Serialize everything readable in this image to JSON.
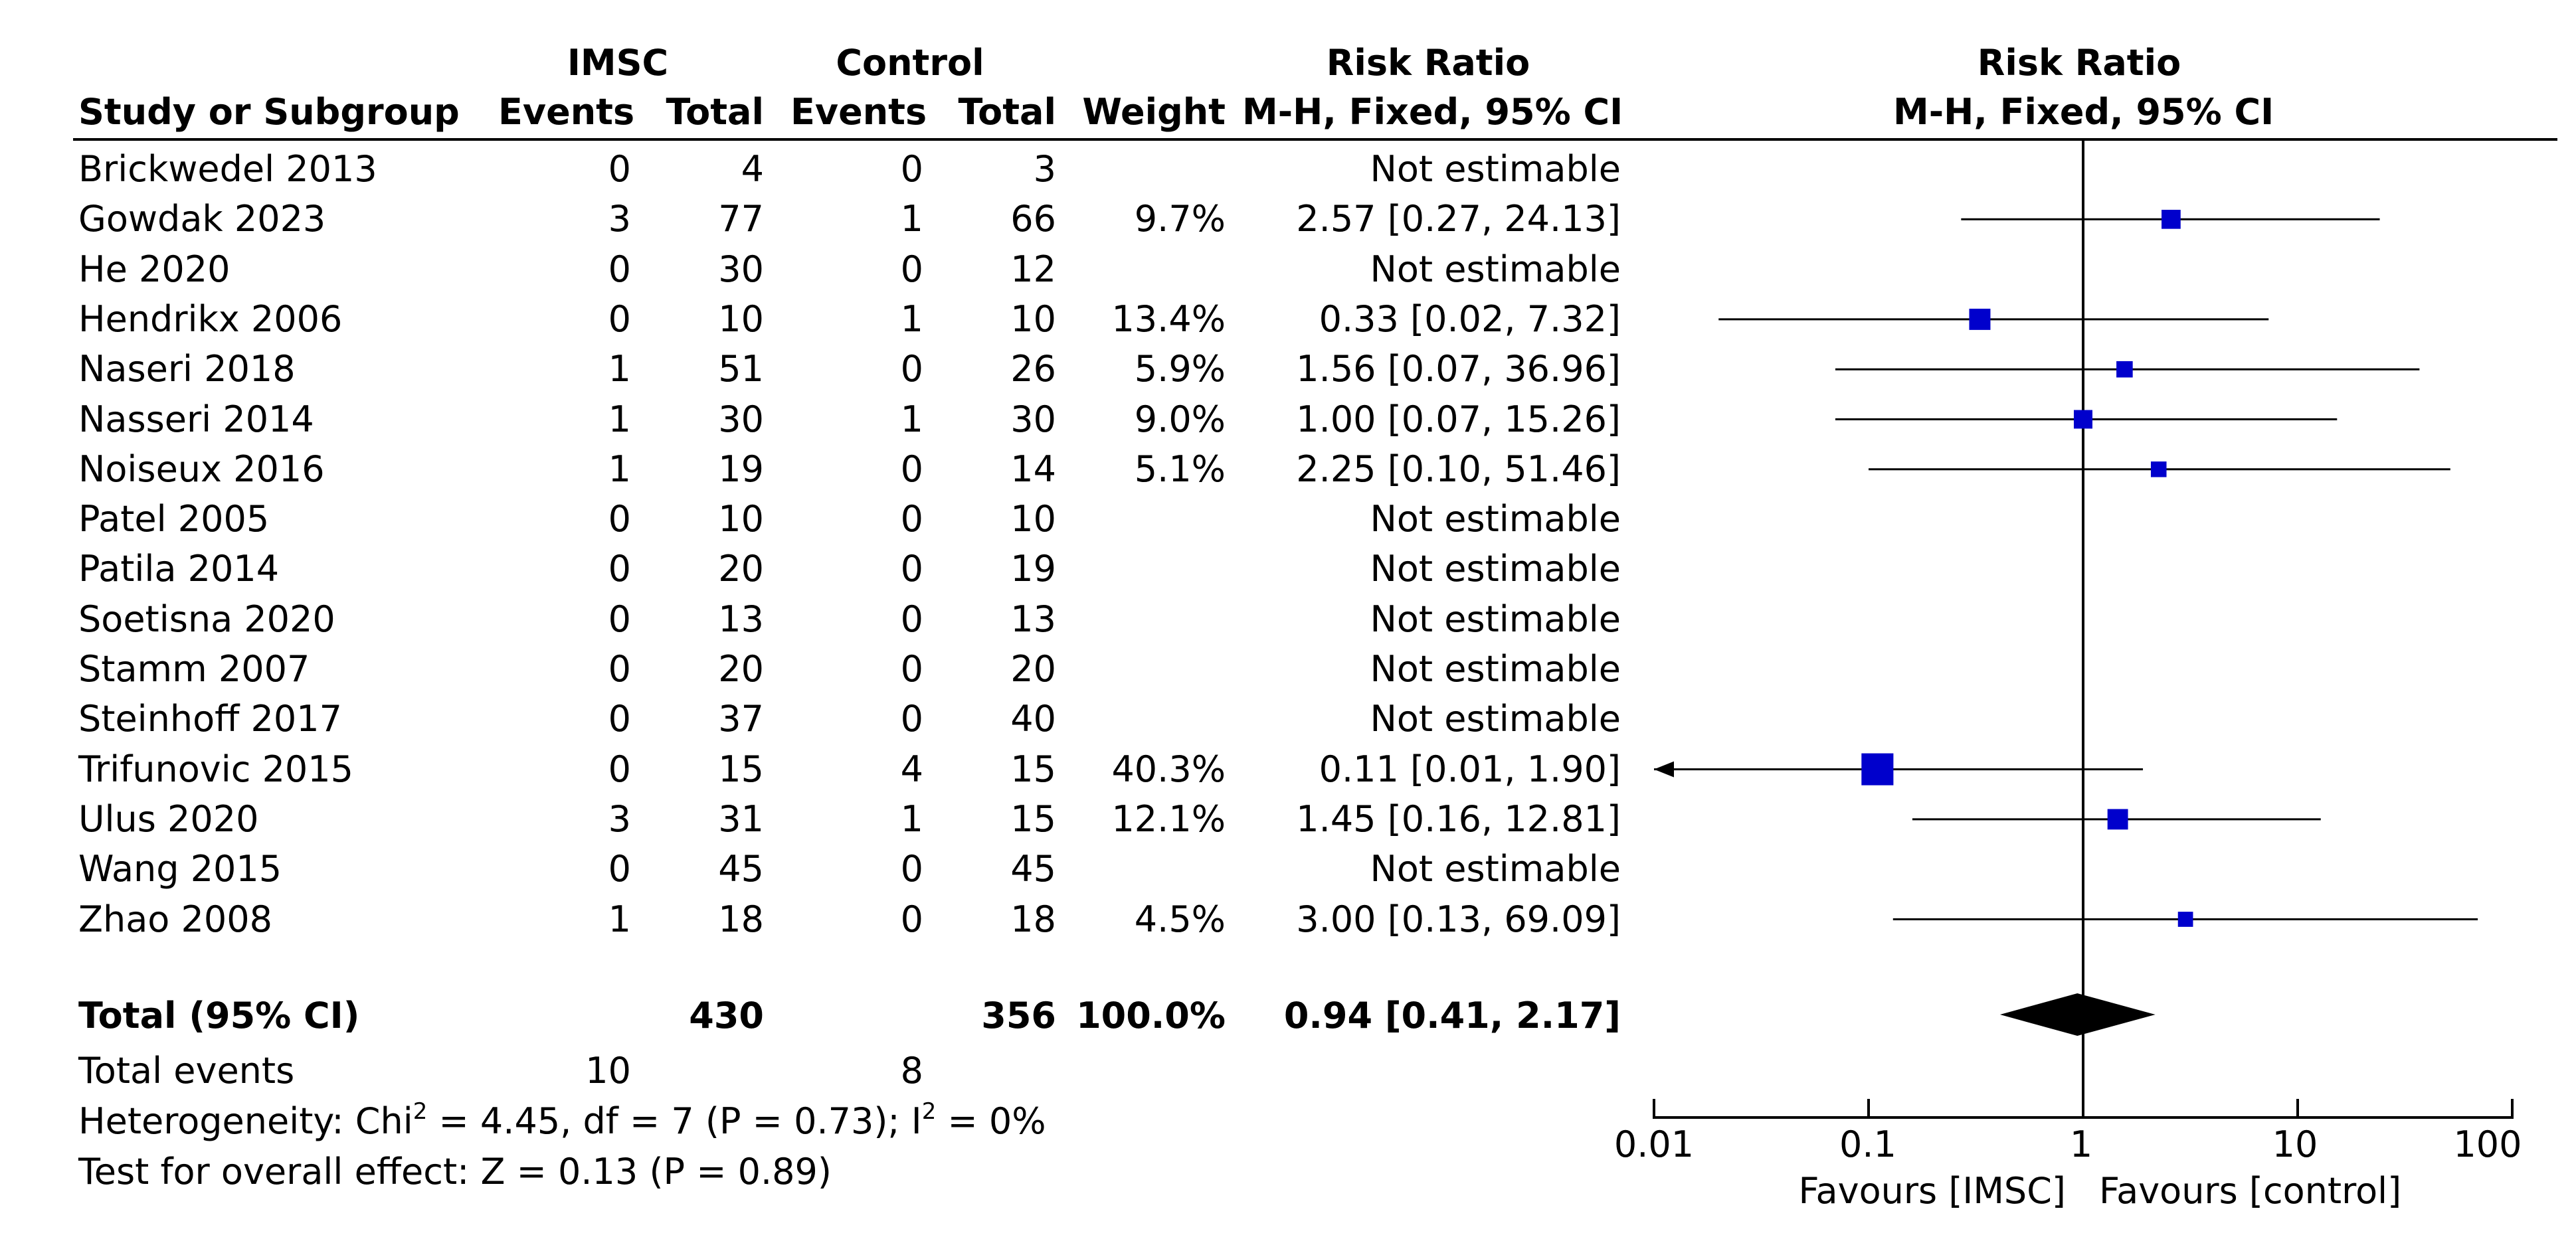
{
  "chart_data": {
    "type": "forest",
    "headers": {
      "group1": "IMSC",
      "group2": "Control",
      "study": "Study or Subgroup",
      "events": "Events",
      "total": "Total",
      "weight": "Weight",
      "rr_title": "Risk Ratio",
      "rr_method": "M-H, Fixed, 95% CI",
      "plot_title": "Risk Ratio",
      "plot_method": "M-H, Fixed, 95% CI"
    },
    "studies": [
      {
        "name": "Brickwedel 2013",
        "e1": "0",
        "n1": "4",
        "e2": "0",
        "n2": "3",
        "weight": "",
        "ci_text": "Not estimable",
        "rr": null,
        "lo": null,
        "hi": null,
        "w": 0
      },
      {
        "name": "Gowdak 2023",
        "e1": "3",
        "n1": "77",
        "e2": "1",
        "n2": "66",
        "weight": "9.7%",
        "ci_text": "2.57 [0.27, 24.13]",
        "rr": 2.57,
        "lo": 0.27,
        "hi": 24.13,
        "w": 9.7
      },
      {
        "name": "He 2020",
        "e1": "0",
        "n1": "30",
        "e2": "0",
        "n2": "12",
        "weight": "",
        "ci_text": "Not estimable",
        "rr": null,
        "lo": null,
        "hi": null,
        "w": 0
      },
      {
        "name": "Hendrikx 2006",
        "e1": "0",
        "n1": "10",
        "e2": "1",
        "n2": "10",
        "weight": "13.4%",
        "ci_text": "0.33 [0.02, 7.32]",
        "rr": 0.33,
        "lo": 0.02,
        "hi": 7.32,
        "w": 13.4
      },
      {
        "name": "Naseri 2018",
        "e1": "1",
        "n1": "51",
        "e2": "0",
        "n2": "26",
        "weight": "5.9%",
        "ci_text": "1.56 [0.07, 36.96]",
        "rr": 1.56,
        "lo": 0.07,
        "hi": 36.96,
        "w": 5.9
      },
      {
        "name": "Nasseri 2014",
        "e1": "1",
        "n1": "30",
        "e2": "1",
        "n2": "30",
        "weight": "9.0%",
        "ci_text": "1.00 [0.07, 15.26]",
        "rr": 1.0,
        "lo": 0.07,
        "hi": 15.26,
        "w": 9.0
      },
      {
        "name": "Noiseux 2016",
        "e1": "1",
        "n1": "19",
        "e2": "0",
        "n2": "14",
        "weight": "5.1%",
        "ci_text": "2.25 [0.10, 51.46]",
        "rr": 2.25,
        "lo": 0.1,
        "hi": 51.46,
        "w": 5.1
      },
      {
        "name": "Patel 2005",
        "e1": "0",
        "n1": "10",
        "e2": "0",
        "n2": "10",
        "weight": "",
        "ci_text": "Not estimable",
        "rr": null,
        "lo": null,
        "hi": null,
        "w": 0
      },
      {
        "name": "Patila 2014",
        "e1": "0",
        "n1": "20",
        "e2": "0",
        "n2": "19",
        "weight": "",
        "ci_text": "Not estimable",
        "rr": null,
        "lo": null,
        "hi": null,
        "w": 0
      },
      {
        "name": "Soetisna 2020",
        "e1": "0",
        "n1": "13",
        "e2": "0",
        "n2": "13",
        "weight": "",
        "ci_text": "Not estimable",
        "rr": null,
        "lo": null,
        "hi": null,
        "w": 0
      },
      {
        "name": "Stamm 2007",
        "e1": "0",
        "n1": "20",
        "e2": "0",
        "n2": "20",
        "weight": "",
        "ci_text": "Not estimable",
        "rr": null,
        "lo": null,
        "hi": null,
        "w": 0
      },
      {
        "name": "Steinhoff 2017",
        "e1": "0",
        "n1": "37",
        "e2": "0",
        "n2": "40",
        "weight": "",
        "ci_text": "Not estimable",
        "rr": null,
        "lo": null,
        "hi": null,
        "w": 0
      },
      {
        "name": "Trifunovic 2015",
        "e1": "0",
        "n1": "15",
        "e2": "4",
        "n2": "15",
        "weight": "40.3%",
        "ci_text": "0.11 [0.01, 1.90]",
        "rr": 0.11,
        "lo": 0.01,
        "hi": 1.9,
        "w": 40.3
      },
      {
        "name": "Ulus 2020",
        "e1": "3",
        "n1": "31",
        "e2": "1",
        "n2": "15",
        "weight": "12.1%",
        "ci_text": "1.45 [0.16, 12.81]",
        "rr": 1.45,
        "lo": 0.16,
        "hi": 12.81,
        "w": 12.1
      },
      {
        "name": "Wang 2015",
        "e1": "0",
        "n1": "45",
        "e2": "0",
        "n2": "45",
        "weight": "",
        "ci_text": "Not estimable",
        "rr": null,
        "lo": null,
        "hi": null,
        "w": 0
      },
      {
        "name": "Zhao 2008",
        "e1": "1",
        "n1": "18",
        "e2": "0",
        "n2": "18",
        "weight": "4.5%",
        "ci_text": "3.00 [0.13, 69.09]",
        "rr": 3.0,
        "lo": 0.13,
        "hi": 69.09,
        "w": 4.5
      }
    ],
    "total": {
      "label": "Total (95% CI)",
      "n1": "430",
      "n2": "356",
      "weight": "100.0%",
      "ci_text": "0.94 [0.41, 2.17]",
      "rr": 0.94,
      "lo": 0.41,
      "hi": 2.17
    },
    "total_events": {
      "label": "Total events",
      "e1": "10",
      "e2": "8"
    },
    "heterogeneity": {
      "prefix": "Heterogeneity: Chi",
      "mid": " = 4.45, df = 7 (P = 0.73); I",
      "suffix": " = 0%",
      "sup": "2"
    },
    "overall_effect": "Test for overall effect: Z = 0.13 (P = 0.89)",
    "axis": {
      "scale": "log",
      "xlim": [
        0.01,
        100
      ],
      "ticks": [
        0.01,
        0.1,
        1,
        10,
        100
      ],
      "tick_labels": [
        "0.01",
        "0.1",
        "1",
        "10",
        "100"
      ],
      "favours_left": "Favours [IMSC]",
      "favours_right": "Favours [control]"
    },
    "colors": {
      "marker": "#0000cc",
      "text": "#000000",
      "diamond": "#000000"
    }
  }
}
